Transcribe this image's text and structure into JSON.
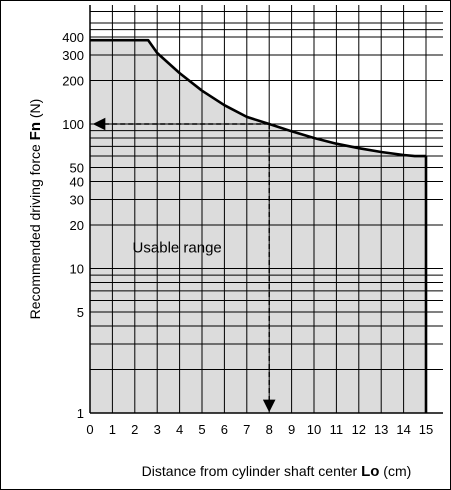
{
  "chart_data": {
    "type": "area",
    "y_scale": "log",
    "xlim": [
      0,
      15
    ],
    "ylim": [
      1,
      450
    ],
    "x_ticks": [
      0,
      1,
      2,
      3,
      4,
      5,
      6,
      7,
      8,
      9,
      10,
      11,
      12,
      13,
      14,
      15
    ],
    "y_ticks": [
      1,
      5,
      10,
      20,
      30,
      40,
      50,
      100,
      200,
      300,
      400
    ],
    "x_tick_labels": [
      "0",
      "1",
      "2",
      "3",
      "4",
      "5",
      "6",
      "7",
      "8",
      "9",
      "10",
      "11",
      "12",
      "13",
      "14",
      "15"
    ],
    "y_tick_labels": [
      "1",
      "5",
      "10",
      "20",
      "30",
      "40",
      "50",
      "100",
      "200",
      "300",
      "400"
    ],
    "xlabel_text": "Distance from cylinder shaft center",
    "xlabel_symbol": "Lo",
    "xlabel_unit": "(cm)",
    "ylabel_text": "Recommended driving force",
    "ylabel_symbol": "Fn",
    "ylabel_unit": "(N)",
    "annotation": "Usable range",
    "grid": true,
    "fill_color": "#dcdcdc",
    "boundary": {
      "x": [
        0,
        2.6,
        3,
        4,
        5,
        6,
        7,
        8,
        9,
        10,
        11,
        12,
        13,
        14,
        14.5,
        15
      ],
      "y": [
        380,
        380,
        310,
        225,
        170,
        135,
        112,
        100,
        89,
        80,
        73,
        68,
        64,
        61,
        60,
        60
      ]
    },
    "guide_point": {
      "x": 8,
      "y": 100
    }
  }
}
